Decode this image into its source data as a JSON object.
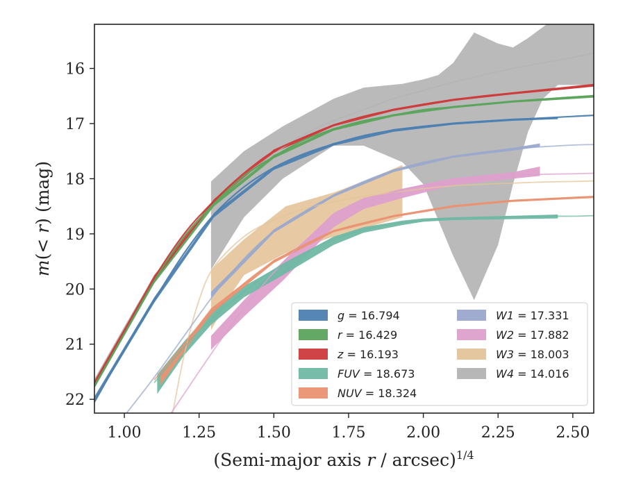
{
  "chart_data": {
    "type": "area",
    "title": "",
    "xlabel": "(Semi-major axis r / arcsec)",
    "xlabel_main": "(Semi-major axis ",
    "xlabel_var": "r",
    "xlabel_rest": " / arcsec)",
    "xlabel_sup": "1/4",
    "ylabel": "m(<r) (mag)",
    "ylabel_pre": "m",
    "ylabel_mid": "(< ",
    "ylabel_var": "r",
    "ylabel_post": ") (mag)",
    "xlim": [
      0.9,
      2.57
    ],
    "ylim": [
      22.25,
      15.2
    ],
    "y_inverted": true,
    "grid": false,
    "legend_placement": "lower-right",
    "xticks": [
      "1.00",
      "1.25",
      "1.50",
      "1.75",
      "2.00",
      "2.25",
      "2.50"
    ],
    "yticks": [
      "16",
      "17",
      "18",
      "19",
      "20",
      "21",
      "22"
    ],
    "series": [
      {
        "name": "g",
        "label_eq": "= 16.794",
        "color": "#4c7fb0",
        "model": [
          [
            0.9,
            22.05
          ],
          [
            1.0,
            21.1
          ],
          [
            1.1,
            20.2
          ],
          [
            1.2,
            19.35
          ],
          [
            1.3,
            18.65
          ],
          [
            1.4,
            18.15
          ],
          [
            1.5,
            17.8
          ],
          [
            1.6,
            17.55
          ],
          [
            1.7,
            17.37
          ],
          [
            1.8,
            17.22
          ],
          [
            1.9,
            17.12
          ],
          [
            2.0,
            17.05
          ],
          [
            2.1,
            17.0
          ],
          [
            2.2,
            16.96
          ],
          [
            2.3,
            16.93
          ],
          [
            2.4,
            16.9
          ],
          [
            2.5,
            16.87
          ],
          [
            2.57,
            16.85
          ]
        ],
        "band": [
          [
            0.9,
            21.95,
            22.05
          ],
          [
            1.1,
            20.15,
            20.25
          ],
          [
            1.3,
            18.62,
            18.7
          ],
          [
            1.5,
            17.78,
            17.84
          ],
          [
            1.7,
            17.35,
            17.4
          ],
          [
            1.9,
            17.1,
            17.15
          ],
          [
            2.1,
            16.98,
            17.02
          ],
          [
            2.3,
            16.91,
            16.95
          ],
          [
            2.45,
            16.88,
            16.92
          ]
        ]
      },
      {
        "name": "r",
        "label_eq": "= 16.429",
        "color": "#5ba35b",
        "model": [
          [
            0.9,
            21.75
          ],
          [
            1.0,
            20.8
          ],
          [
            1.1,
            19.85
          ],
          [
            1.2,
            19.05
          ],
          [
            1.3,
            18.45
          ],
          [
            1.4,
            17.95
          ],
          [
            1.5,
            17.6
          ],
          [
            1.6,
            17.3
          ],
          [
            1.7,
            17.1
          ],
          [
            1.8,
            16.95
          ],
          [
            1.9,
            16.85
          ],
          [
            2.0,
            16.75
          ],
          [
            2.1,
            16.7
          ],
          [
            2.2,
            16.65
          ],
          [
            2.3,
            16.6
          ],
          [
            2.4,
            16.56
          ],
          [
            2.5,
            16.52
          ],
          [
            2.57,
            16.5
          ]
        ],
        "band": [
          [
            0.9,
            21.7,
            21.8
          ],
          [
            1.1,
            19.8,
            19.9
          ],
          [
            1.3,
            18.42,
            18.5
          ],
          [
            1.5,
            17.57,
            17.63
          ],
          [
            1.7,
            17.08,
            17.13
          ],
          [
            1.9,
            16.83,
            16.87
          ],
          [
            2.1,
            16.68,
            16.72
          ],
          [
            2.3,
            16.58,
            16.62
          ],
          [
            2.57,
            16.48,
            16.53
          ]
        ]
      },
      {
        "name": "z",
        "label_eq": "= 16.193",
        "color": "#cc3b3b",
        "model": [
          [
            0.9,
            21.7
          ],
          [
            1.0,
            20.75
          ],
          [
            1.1,
            19.8
          ],
          [
            1.2,
            19.0
          ],
          [
            1.3,
            18.4
          ],
          [
            1.4,
            17.9
          ],
          [
            1.5,
            17.5
          ],
          [
            1.6,
            17.25
          ],
          [
            1.7,
            17.03
          ],
          [
            1.8,
            16.87
          ],
          [
            1.9,
            16.75
          ],
          [
            2.0,
            16.65
          ],
          [
            2.1,
            16.57
          ],
          [
            2.2,
            16.5
          ],
          [
            2.3,
            16.45
          ],
          [
            2.4,
            16.4
          ],
          [
            2.5,
            16.35
          ],
          [
            2.57,
            16.3
          ]
        ],
        "band": [
          [
            0.9,
            21.65,
            21.75
          ],
          [
            1.1,
            19.75,
            19.85
          ],
          [
            1.3,
            18.37,
            18.43
          ],
          [
            1.5,
            17.47,
            17.53
          ],
          [
            1.7,
            17.01,
            17.05
          ],
          [
            1.9,
            16.73,
            16.77
          ],
          [
            2.1,
            16.55,
            16.59
          ],
          [
            2.3,
            16.43,
            16.47
          ],
          [
            2.57,
            16.28,
            16.33
          ]
        ]
      },
      {
        "name": "FUV",
        "label_eq": "= 18.673",
        "color": "#6fb8a4",
        "model": [
          [
            1.1,
            21.7
          ],
          [
            1.2,
            21.05
          ],
          [
            1.3,
            20.5
          ],
          [
            1.4,
            20.05
          ],
          [
            1.5,
            19.65
          ],
          [
            1.6,
            19.35
          ],
          [
            1.7,
            19.1
          ],
          [
            1.8,
            18.93
          ],
          [
            1.9,
            18.82
          ],
          [
            2.0,
            18.76
          ],
          [
            2.1,
            18.72
          ],
          [
            2.2,
            18.7
          ],
          [
            2.3,
            18.69
          ],
          [
            2.4,
            18.68
          ],
          [
            2.5,
            18.68
          ],
          [
            2.57,
            18.67
          ]
        ],
        "band": [
          [
            1.11,
            21.55,
            21.9
          ],
          [
            1.2,
            20.95,
            21.2
          ],
          [
            1.29,
            20.4,
            20.65
          ],
          [
            1.4,
            19.95,
            20.15
          ],
          [
            1.53,
            19.55,
            19.75
          ],
          [
            1.7,
            19.05,
            19.2
          ],
          [
            1.8,
            18.88,
            18.98
          ],
          [
            1.93,
            18.76,
            18.84
          ],
          [
            2.0,
            18.72,
            18.78
          ],
          [
            2.1,
            18.7,
            18.75
          ],
          [
            2.45,
            18.65,
            18.72
          ]
        ]
      },
      {
        "name": "NUV",
        "label_eq": "= 18.324",
        "color": "#ea9272",
        "model": [
          [
            1.1,
            21.65
          ],
          [
            1.2,
            21.0
          ],
          [
            1.3,
            20.4
          ],
          [
            1.4,
            19.9
          ],
          [
            1.5,
            19.5
          ],
          [
            1.6,
            19.2
          ],
          [
            1.7,
            18.95
          ],
          [
            1.8,
            18.8
          ],
          [
            1.9,
            18.68
          ],
          [
            2.0,
            18.58
          ],
          [
            2.1,
            18.5
          ],
          [
            2.2,
            18.44
          ],
          [
            2.3,
            18.4
          ],
          [
            2.4,
            18.37
          ],
          [
            2.5,
            18.34
          ],
          [
            2.57,
            18.33
          ]
        ],
        "band": [
          [
            1.12,
            21.55,
            21.75
          ],
          [
            1.29,
            20.35,
            20.45
          ],
          [
            1.5,
            19.47,
            19.53
          ],
          [
            1.7,
            18.93,
            18.97
          ],
          [
            1.9,
            18.66,
            18.7
          ],
          [
            2.1,
            18.48,
            18.52
          ],
          [
            2.3,
            18.38,
            18.42
          ],
          [
            2.57,
            18.31,
            18.35
          ]
        ]
      },
      {
        "name": "W1",
        "label_eq": "= 17.331",
        "color": "#9aa8cc",
        "model": [
          [
            1.0,
            22.3
          ],
          [
            1.1,
            21.6
          ],
          [
            1.2,
            20.85
          ],
          [
            1.3,
            20.1
          ],
          [
            1.4,
            19.45
          ],
          [
            1.5,
            18.95
          ],
          [
            1.6,
            18.6
          ],
          [
            1.7,
            18.3
          ],
          [
            1.8,
            18.05
          ],
          [
            1.9,
            17.85
          ],
          [
            2.0,
            17.7
          ],
          [
            2.1,
            17.6
          ],
          [
            2.2,
            17.52
          ],
          [
            2.3,
            17.46
          ],
          [
            2.4,
            17.42
          ],
          [
            2.5,
            17.39
          ],
          [
            2.57,
            17.38
          ]
        ],
        "band": [
          [
            1.29,
            20.05,
            20.15
          ],
          [
            1.5,
            18.92,
            18.98
          ],
          [
            1.7,
            18.28,
            18.33
          ],
          [
            1.9,
            17.83,
            17.88
          ],
          [
            2.1,
            17.58,
            17.62
          ],
          [
            2.3,
            17.44,
            17.49
          ],
          [
            2.39,
            17.36,
            17.42
          ]
        ]
      },
      {
        "name": "W2",
        "label_eq": "= 17.882",
        "color": "#dda0cc",
        "model": [
          [
            1.15,
            22.3
          ],
          [
            1.2,
            21.9
          ],
          [
            1.3,
            21.1
          ],
          [
            1.4,
            20.35
          ],
          [
            1.5,
            19.7
          ],
          [
            1.6,
            19.15
          ],
          [
            1.7,
            18.75
          ],
          [
            1.8,
            18.45
          ],
          [
            1.9,
            18.25
          ],
          [
            2.0,
            18.12
          ],
          [
            2.1,
            18.04
          ],
          [
            2.2,
            17.98
          ],
          [
            2.3,
            17.94
          ],
          [
            2.4,
            17.92
          ],
          [
            2.5,
            17.91
          ],
          [
            2.57,
            17.9
          ]
        ],
        "band": [
          [
            1.29,
            20.85,
            21.1
          ],
          [
            1.4,
            20.2,
            20.5
          ],
          [
            1.53,
            19.5,
            19.85
          ],
          [
            1.7,
            18.62,
            18.88
          ],
          [
            1.8,
            18.35,
            18.55
          ],
          [
            1.93,
            18.18,
            18.35
          ],
          [
            2.1,
            17.99,
            18.12
          ],
          [
            2.3,
            17.88,
            18.0
          ],
          [
            2.39,
            17.78,
            17.95
          ]
        ]
      },
      {
        "name": "W3",
        "label_eq": "= 18.003",
        "color": "#e4c49a",
        "model": [
          [
            1.16,
            22.3
          ],
          [
            1.2,
            21.2
          ],
          [
            1.25,
            20.2
          ],
          [
            1.3,
            19.6
          ],
          [
            1.4,
            19.05
          ],
          [
            1.5,
            18.75
          ],
          [
            1.6,
            18.55
          ],
          [
            1.7,
            18.42
          ],
          [
            1.8,
            18.32
          ],
          [
            1.9,
            18.25
          ],
          [
            2.0,
            18.18
          ],
          [
            2.1,
            18.13
          ],
          [
            2.2,
            18.1
          ],
          [
            2.3,
            18.08
          ],
          [
            2.4,
            18.06
          ],
          [
            2.5,
            18.05
          ],
          [
            2.57,
            18.04
          ]
        ],
        "band": [
          [
            1.29,
            19.65,
            20.75
          ],
          [
            1.35,
            19.35,
            20.15
          ],
          [
            1.4,
            19.1,
            19.75
          ],
          [
            1.54,
            18.5,
            19.35
          ],
          [
            1.7,
            18.25,
            19.05
          ],
          [
            1.8,
            18.05,
            18.9
          ],
          [
            1.93,
            17.75,
            18.7
          ]
        ]
      },
      {
        "name": "W4",
        "label_eq": "= 14.016",
        "color": "#b3b3b3",
        "model": [
          [
            0.9,
            21.65
          ],
          [
            1.0,
            20.7
          ],
          [
            1.1,
            19.8
          ],
          [
            1.2,
            19.05
          ],
          [
            1.3,
            18.45
          ],
          [
            1.4,
            17.95
          ],
          [
            1.5,
            17.55
          ],
          [
            1.6,
            17.2
          ],
          [
            1.7,
            16.95
          ],
          [
            1.8,
            16.75
          ],
          [
            1.9,
            16.55
          ],
          [
            2.0,
            16.4
          ],
          [
            2.1,
            16.25
          ],
          [
            2.2,
            16.12
          ],
          [
            2.3,
            16.0
          ],
          [
            2.4,
            15.9
          ],
          [
            2.5,
            15.8
          ],
          [
            2.57,
            15.72
          ]
        ],
        "band": [
          [
            1.29,
            18.05,
            19.65
          ],
          [
            1.4,
            17.5,
            18.7
          ],
          [
            1.53,
            17.05,
            18.0
          ],
          [
            1.7,
            16.55,
            17.4
          ],
          [
            1.8,
            16.35,
            17.4
          ],
          [
            1.93,
            16.28,
            17.7
          ],
          [
            2.0,
            16.2,
            18.1
          ],
          [
            2.05,
            16.12,
            18.75
          ],
          [
            2.1,
            15.9,
            19.4
          ],
          [
            2.17,
            15.35,
            20.2
          ],
          [
            2.25,
            15.55,
            19.2
          ],
          [
            2.3,
            15.62,
            18.1
          ],
          [
            2.35,
            15.45,
            17.15
          ],
          [
            2.4,
            15.25,
            16.55
          ],
          [
            2.45,
            15.05,
            16.3
          ],
          [
            2.57,
            14.9,
            16.3
          ]
        ]
      }
    ]
  }
}
